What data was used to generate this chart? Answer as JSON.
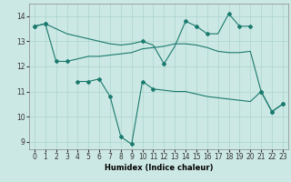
{
  "xlabel": "Humidex (Indice chaleur)",
  "background_color": "#cce8e4",
  "line_color": "#1a7a6e",
  "grid_color": "#aad4cc",
  "line1_x": [
    0,
    1,
    2,
    3,
    4,
    5,
    6,
    7,
    8,
    9,
    10,
    11,
    12,
    13,
    14,
    15,
    16,
    17,
    18,
    19,
    20
  ],
  "line1_y": [
    13.6,
    13.7,
    13.5,
    13.3,
    13.2,
    13.1,
    13.0,
    12.9,
    12.85,
    12.9,
    13.0,
    12.85,
    12.1,
    12.8,
    13.8,
    13.6,
    13.3,
    13.3,
    14.1,
    13.6,
    13.6
  ],
  "line1_mk_x": [
    0,
    1,
    10,
    12,
    14,
    15,
    16,
    18,
    19,
    20
  ],
  "line1_mk_y": [
    13.6,
    13.7,
    13.0,
    12.1,
    13.8,
    13.6,
    13.3,
    14.1,
    13.6,
    13.6
  ],
  "line2_x": [
    0,
    1,
    2,
    3,
    4,
    5,
    6,
    7,
    8,
    9,
    10,
    11,
    12,
    13,
    14,
    15,
    16,
    17,
    18,
    19,
    20,
    21,
    22,
    23
  ],
  "line2_y": [
    13.6,
    13.7,
    12.2,
    12.2,
    12.3,
    12.4,
    12.4,
    12.45,
    12.5,
    12.55,
    12.7,
    12.75,
    12.8,
    12.9,
    12.9,
    12.85,
    12.75,
    12.6,
    12.55,
    12.55,
    12.6,
    11.0,
    10.2,
    10.5
  ],
  "line2_mk_x": [
    0,
    1,
    2,
    3,
    21,
    22,
    23
  ],
  "line2_mk_y": [
    13.6,
    13.7,
    12.2,
    12.2,
    11.0,
    10.2,
    10.5
  ],
  "line3_x": [
    4,
    5,
    6,
    7,
    8,
    9,
    10,
    11,
    12,
    13,
    14,
    15,
    16,
    17,
    18,
    19,
    20,
    21,
    22,
    23
  ],
  "line3_y": [
    11.4,
    11.4,
    11.5,
    10.8,
    9.2,
    8.9,
    11.4,
    11.1,
    11.05,
    11.0,
    11.0,
    10.9,
    10.8,
    10.75,
    10.7,
    10.65,
    10.6,
    11.0,
    10.2,
    10.5
  ],
  "line3_mk_x": [
    4,
    5,
    6,
    7,
    8,
    9,
    10,
    11,
    21,
    22,
    23
  ],
  "line3_mk_y": [
    11.4,
    11.4,
    11.5,
    10.8,
    9.2,
    8.9,
    11.4,
    11.1,
    11.0,
    10.2,
    10.5
  ],
  "ylim": [
    8.7,
    14.5
  ],
  "xlim": [
    -0.5,
    23.5
  ],
  "yticks": [
    9,
    10,
    11,
    12,
    13,
    14
  ],
  "xticks": [
    0,
    1,
    2,
    3,
    4,
    5,
    6,
    7,
    8,
    9,
    10,
    11,
    12,
    13,
    14,
    15,
    16,
    17,
    18,
    19,
    20,
    21,
    22,
    23
  ]
}
